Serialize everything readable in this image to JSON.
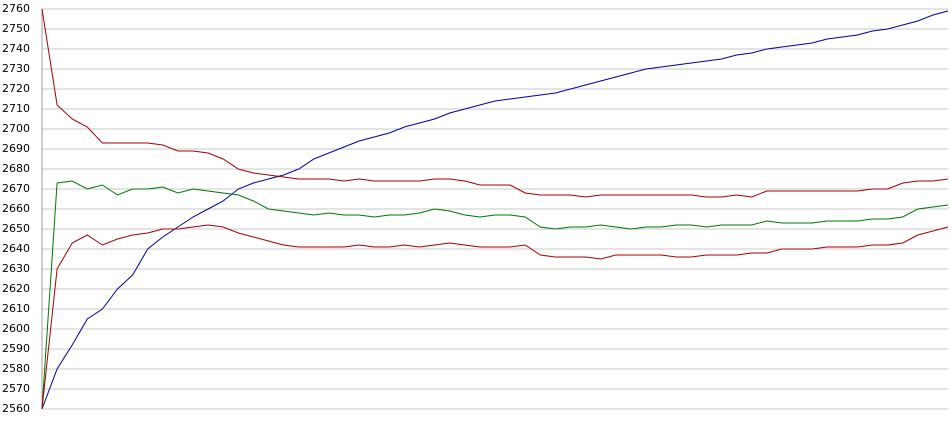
{
  "chart_data": {
    "type": "line",
    "ylim": [
      2560,
      2760
    ],
    "yticks": [
      2560,
      2570,
      2580,
      2590,
      2600,
      2610,
      2620,
      2630,
      2640,
      2650,
      2660,
      2670,
      2680,
      2690,
      2700,
      2710,
      2720,
      2730,
      2740,
      2750,
      2760
    ],
    "grid": true,
    "series": [
      {
        "color": "#0000a8",
        "values": [
          2560,
          2580,
          2592,
          2605,
          2610,
          2620,
          2627,
          2640,
          2646,
          2651,
          2656,
          2660,
          2664,
          2670,
          2673,
          2675,
          2677,
          2680,
          2685,
          2688,
          2691,
          2694,
          2696,
          2698,
          2701,
          2703,
          2705,
          2708,
          2710,
          2712,
          2714,
          2715,
          2716,
          2717,
          2718,
          2720,
          2722,
          2724,
          2726,
          2728,
          2730,
          2731,
          2732,
          2733,
          2734,
          2735,
          2737,
          2738,
          2740,
          2741,
          2742,
          2743,
          2745,
          2746,
          2747,
          2749,
          2750,
          2752,
          2754,
          2757,
          2759
        ]
      },
      {
        "color": "#007800",
        "values": [
          2560,
          2673,
          2674,
          2670,
          2672,
          2667,
          2670,
          2670,
          2671,
          2668,
          2670,
          2669,
          2668,
          2667,
          2664,
          2660,
          2659,
          2658,
          2657,
          2658,
          2657,
          2657,
          2656,
          2657,
          2657,
          2658,
          2660,
          2659,
          2657,
          2656,
          2657,
          2657,
          2656,
          2651,
          2650,
          2651,
          2651,
          2652,
          2651,
          2650,
          2651,
          2651,
          2652,
          2652,
          2651,
          2652,
          2652,
          2652,
          2654,
          2653,
          2653,
          2653,
          2654,
          2654,
          2654,
          2655,
          2655,
          2656,
          2660,
          2661,
          2662
        ]
      },
      {
        "color": "#a80000",
        "values": [
          2760,
          2712,
          2705,
          2701,
          2693,
          2693,
          2693,
          2693,
          2692,
          2689,
          2689,
          2688,
          2685,
          2680,
          2678,
          2677,
          2676,
          2675,
          2675,
          2675,
          2674,
          2675,
          2674,
          2674,
          2674,
          2674,
          2675,
          2675,
          2674,
          2672,
          2672,
          2672,
          2668,
          2667,
          2667,
          2667,
          2666,
          2667,
          2667,
          2667,
          2667,
          2667,
          2667,
          2667,
          2666,
          2666,
          2667,
          2666,
          2669,
          2669,
          2669,
          2669,
          2669,
          2669,
          2669,
          2670,
          2670,
          2673,
          2674,
          2674,
          2675
        ]
      },
      {
        "color": "#a80000",
        "values": [
          2560,
          2630,
          2643,
          2647,
          2642,
          2645,
          2647,
          2648,
          2650,
          2650,
          2651,
          2652,
          2651,
          2648,
          2646,
          2644,
          2642,
          2641,
          2641,
          2641,
          2641,
          2642,
          2641,
          2641,
          2642,
          2641,
          2642,
          2643,
          2642,
          2641,
          2641,
          2641,
          2642,
          2637,
          2636,
          2636,
          2636,
          2635,
          2637,
          2637,
          2637,
          2637,
          2636,
          2636,
          2637,
          2637,
          2637,
          2638,
          2638,
          2640,
          2640,
          2640,
          2641,
          2641,
          2641,
          2642,
          2642,
          2643,
          2647,
          2649,
          2651
        ]
      }
    ]
  }
}
